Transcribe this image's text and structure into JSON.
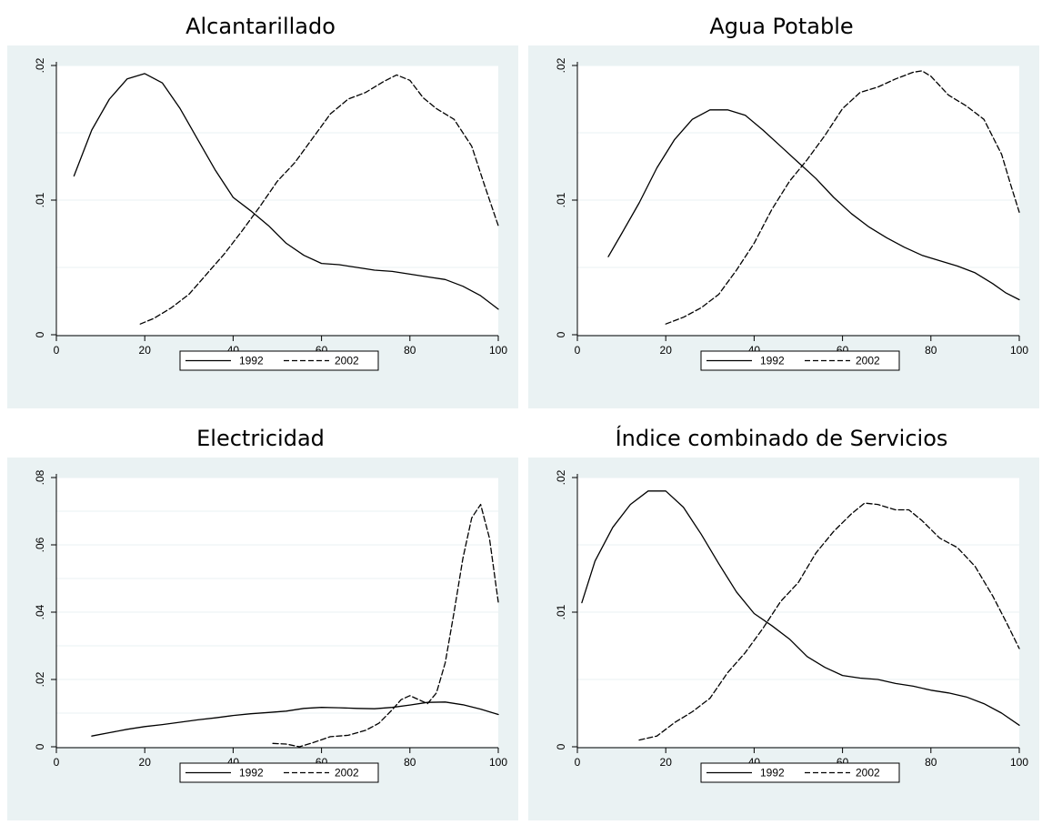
{
  "figure": {
    "legend_labels": [
      "1992",
      "2002"
    ]
  },
  "chart_data": [
    {
      "type": "line",
      "title": "Alcantarillado",
      "xlabel": "",
      "ylabel": "",
      "xlim": [
        0,
        100
      ],
      "ylim": [
        0,
        0.02
      ],
      "x_ticks": [
        "0",
        "20",
        "40",
        "60",
        "80",
        "100"
      ],
      "y_ticks": [
        ".02",
        ".01",
        "0"
      ],
      "grid": true,
      "legend": "bottom-center",
      "series": [
        {
          "name": "1992",
          "style": "solid",
          "points": [
            [
              4,
              0.0118
            ],
            [
              8,
              0.0152
            ],
            [
              12,
              0.0175
            ],
            [
              16,
              0.019
            ],
            [
              20,
              0.0194
            ],
            [
              24,
              0.0187
            ],
            [
              28,
              0.0168
            ],
            [
              32,
              0.0145
            ],
            [
              36,
              0.0122
            ],
            [
              40,
              0.0102
            ],
            [
              44,
              0.0092
            ],
            [
              48,
              0.0081
            ],
            [
              52,
              0.0068
            ],
            [
              56,
              0.0059
            ],
            [
              60,
              0.0053
            ],
            [
              64,
              0.0052
            ],
            [
              68,
              0.005
            ],
            [
              72,
              0.0048
            ],
            [
              76,
              0.0047
            ],
            [
              80,
              0.0045
            ],
            [
              84,
              0.0043
            ],
            [
              88,
              0.0041
            ],
            [
              92,
              0.0036
            ],
            [
              96,
              0.0029
            ],
            [
              100,
              0.0019
            ]
          ]
        },
        {
          "name": "2002",
          "style": "dashed",
          "points": [
            [
              19,
              0.0008
            ],
            [
              22,
              0.0012
            ],
            [
              26,
              0.002
            ],
            [
              30,
              0.003
            ],
            [
              34,
              0.0045
            ],
            [
              38,
              0.006
            ],
            [
              42,
              0.0077
            ],
            [
              46,
              0.0095
            ],
            [
              50,
              0.0114
            ],
            [
              54,
              0.0128
            ],
            [
              58,
              0.0146
            ],
            [
              62,
              0.0164
            ],
            [
              66,
              0.0175
            ],
            [
              70,
              0.018
            ],
            [
              74,
              0.0188
            ],
            [
              77,
              0.0193
            ],
            [
              80,
              0.0189
            ],
            [
              83,
              0.0176
            ],
            [
              86,
              0.0168
            ],
            [
              90,
              0.016
            ],
            [
              94,
              0.014
            ],
            [
              97,
              0.011
            ],
            [
              100,
              0.0081
            ]
          ]
        }
      ]
    },
    {
      "type": "line",
      "title": "Agua Potable",
      "xlabel": "",
      "ylabel": "",
      "xlim": [
        0,
        100
      ],
      "ylim": [
        0,
        0.02
      ],
      "x_ticks": [
        "0",
        "20",
        "40",
        "60",
        "80",
        "100"
      ],
      "y_ticks": [
        ".02",
        ".01",
        "0"
      ],
      "grid": true,
      "legend": "bottom-center",
      "series": [
        {
          "name": "1992",
          "style": "solid",
          "points": [
            [
              7,
              0.0058
            ],
            [
              10,
              0.0075
            ],
            [
              14,
              0.0098
            ],
            [
              18,
              0.0124
            ],
            [
              22,
              0.0145
            ],
            [
              26,
              0.016
            ],
            [
              30,
              0.0167
            ],
            [
              34,
              0.0167
            ],
            [
              38,
              0.0163
            ],
            [
              42,
              0.0152
            ],
            [
              46,
              0.014
            ],
            [
              50,
              0.0128
            ],
            [
              54,
              0.0116
            ],
            [
              58,
              0.0102
            ],
            [
              62,
              0.009
            ],
            [
              66,
              0.008
            ],
            [
              70,
              0.0072
            ],
            [
              74,
              0.0065
            ],
            [
              78,
              0.0059
            ],
            [
              82,
              0.0055
            ],
            [
              86,
              0.0051
            ],
            [
              90,
              0.0046
            ],
            [
              94,
              0.0038
            ],
            [
              97,
              0.0031
            ],
            [
              100,
              0.0026
            ]
          ]
        },
        {
          "name": "2002",
          "style": "dashed",
          "points": [
            [
              20,
              0.0008
            ],
            [
              24,
              0.0013
            ],
            [
              28,
              0.002
            ],
            [
              32,
              0.003
            ],
            [
              36,
              0.0048
            ],
            [
              40,
              0.0068
            ],
            [
              44,
              0.0093
            ],
            [
              48,
              0.0114
            ],
            [
              52,
              0.013
            ],
            [
              56,
              0.0148
            ],
            [
              60,
              0.0168
            ],
            [
              64,
              0.018
            ],
            [
              68,
              0.0184
            ],
            [
              72,
              0.019
            ],
            [
              76,
              0.0195
            ],
            [
              78,
              0.0196
            ],
            [
              80,
              0.0192
            ],
            [
              84,
              0.0178
            ],
            [
              88,
              0.017
            ],
            [
              92,
              0.016
            ],
            [
              96,
              0.0134
            ],
            [
              98,
              0.0112
            ],
            [
              100,
              0.0091
            ]
          ]
        }
      ]
    },
    {
      "type": "line",
      "title": "Electricidad",
      "xlabel": "",
      "ylabel": "",
      "xlim": [
        0,
        100
      ],
      "ylim": [
        0,
        0.08
      ],
      "x_ticks": [
        "0",
        "20",
        "40",
        "60",
        "80",
        "100"
      ],
      "y_ticks": [
        ".08",
        ".06",
        ".04",
        ".02",
        "0"
      ],
      "grid": true,
      "legend": "bottom-center",
      "series": [
        {
          "name": "1992",
          "style": "solid",
          "points": [
            [
              8,
              0.0032
            ],
            [
              12,
              0.0042
            ],
            [
              16,
              0.0052
            ],
            [
              20,
              0.006
            ],
            [
              24,
              0.0066
            ],
            [
              28,
              0.0073
            ],
            [
              32,
              0.008
            ],
            [
              36,
              0.0086
            ],
            [
              40,
              0.0093
            ],
            [
              44,
              0.0098
            ],
            [
              48,
              0.0102
            ],
            [
              52,
              0.0106
            ],
            [
              56,
              0.0114
            ],
            [
              60,
              0.0117
            ],
            [
              64,
              0.0116
            ],
            [
              68,
              0.0114
            ],
            [
              72,
              0.0113
            ],
            [
              76,
              0.0117
            ],
            [
              80,
              0.0124
            ],
            [
              84,
              0.0132
            ],
            [
              88,
              0.0133
            ],
            [
              92,
              0.0125
            ],
            [
              96,
              0.0112
            ],
            [
              100,
              0.0096
            ]
          ]
        },
        {
          "name": "2002",
          "style": "dashed",
          "points": [
            [
              49,
              0.001
            ],
            [
              52,
              0.0008
            ],
            [
              55,
              0.0
            ],
            [
              58,
              0.0012
            ],
            [
              62,
              0.003
            ],
            [
              66,
              0.0034
            ],
            [
              70,
              0.0049
            ],
            [
              73,
              0.007
            ],
            [
              76,
              0.011
            ],
            [
              78,
              0.014
            ],
            [
              80,
              0.0152
            ],
            [
              82,
              0.014
            ],
            [
              84,
              0.0128
            ],
            [
              86,
              0.016
            ],
            [
              88,
              0.025
            ],
            [
              90,
              0.04
            ],
            [
              92,
              0.056
            ],
            [
              94,
              0.068
            ],
            [
              96,
              0.072
            ],
            [
              98,
              0.062
            ],
            [
              100,
              0.043
            ]
          ]
        }
      ]
    },
    {
      "type": "line",
      "title": "Índice combinado de Servicios",
      "xlabel": "",
      "ylabel": "",
      "xlim": [
        0,
        100
      ],
      "ylim": [
        0,
        0.02
      ],
      "x_ticks": [
        "0",
        "20",
        "40",
        "60",
        "80",
        "100"
      ],
      "y_ticks": [
        ".02",
        ".01",
        "0"
      ],
      "grid": true,
      "legend": "bottom-center",
      "series": [
        {
          "name": "1992",
          "style": "solid",
          "points": [
            [
              1,
              0.0107
            ],
            [
              4,
              0.0138
            ],
            [
              8,
              0.0163
            ],
            [
              12,
              0.018
            ],
            [
              16,
              0.019
            ],
            [
              20,
              0.019
            ],
            [
              24,
              0.0178
            ],
            [
              28,
              0.0158
            ],
            [
              32,
              0.0136
            ],
            [
              36,
              0.0115
            ],
            [
              40,
              0.0099
            ],
            [
              44,
              0.009
            ],
            [
              48,
              0.008
            ],
            [
              52,
              0.0067
            ],
            [
              56,
              0.0059
            ],
            [
              60,
              0.0053
            ],
            [
              64,
              0.0051
            ],
            [
              68,
              0.005
            ],
            [
              72,
              0.0047
            ],
            [
              76,
              0.0045
            ],
            [
              80,
              0.0042
            ],
            [
              84,
              0.004
            ],
            [
              88,
              0.0037
            ],
            [
              92,
              0.0032
            ],
            [
              96,
              0.0025
            ],
            [
              100,
              0.0016
            ]
          ]
        },
        {
          "name": "2002",
          "style": "dashed",
          "points": [
            [
              14,
              0.0005
            ],
            [
              18,
              0.0008
            ],
            [
              22,
              0.0018
            ],
            [
              26,
              0.0026
            ],
            [
              30,
              0.0036
            ],
            [
              34,
              0.0055
            ],
            [
              38,
              0.007
            ],
            [
              42,
              0.0088
            ],
            [
              46,
              0.0108
            ],
            [
              50,
              0.0122
            ],
            [
              54,
              0.0144
            ],
            [
              58,
              0.016
            ],
            [
              62,
              0.0173
            ],
            [
              65,
              0.0181
            ],
            [
              68,
              0.018
            ],
            [
              72,
              0.0176
            ],
            [
              75,
              0.0176
            ],
            [
              78,
              0.0168
            ],
            [
              82,
              0.0155
            ],
            [
              86,
              0.0148
            ],
            [
              90,
              0.0134
            ],
            [
              94,
              0.0112
            ],
            [
              97,
              0.0093
            ],
            [
              100,
              0.0073
            ]
          ]
        }
      ]
    }
  ]
}
